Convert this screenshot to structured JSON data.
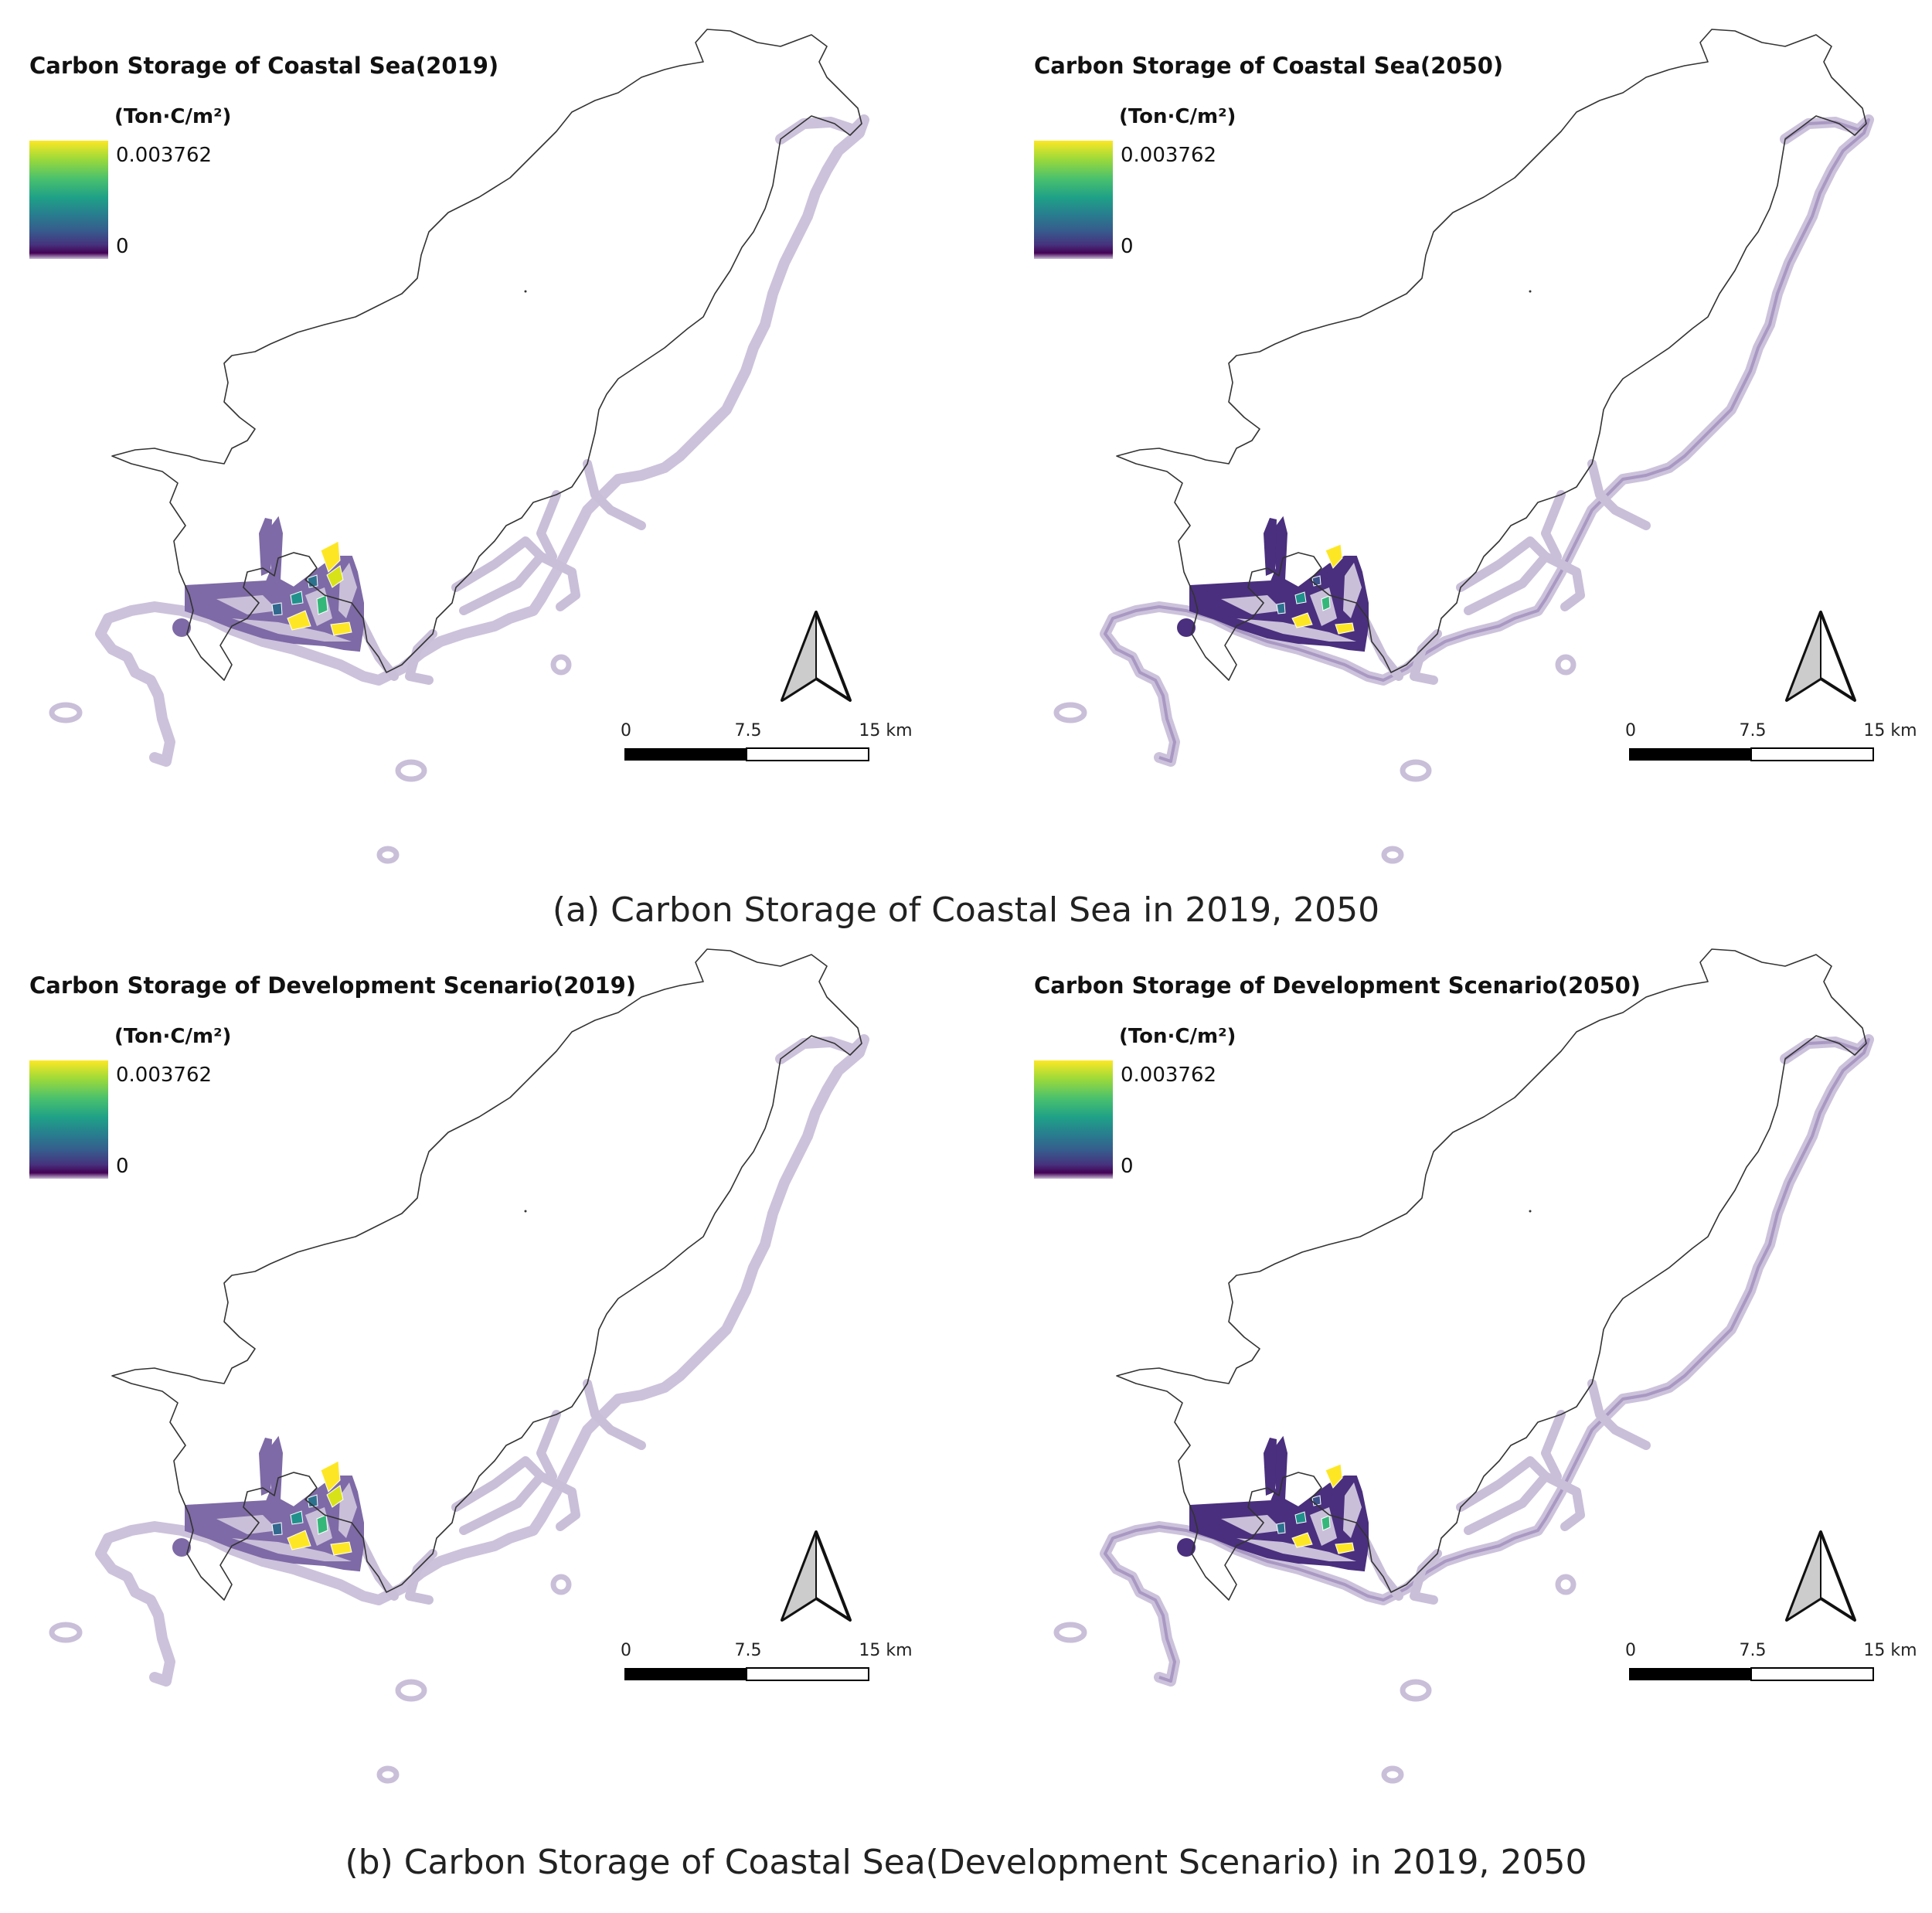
{
  "panels": [
    {
      "title": "Carbon Storage of Coastal Sea(2019)",
      "unit": "(Ton·C/m²)",
      "legend_max": "0.003762",
      "legend_min": "0",
      "scenario": "2019"
    },
    {
      "title": "Carbon Storage of Coastal Sea(2050)",
      "unit": "(Ton·C/m²)",
      "legend_max": "0.003762",
      "legend_min": "0",
      "scenario": "2050"
    },
    {
      "title": "Carbon Storage of Development Scenario(2019)",
      "unit": "(Ton·C/m²)",
      "legend_max": "0.003762",
      "legend_min": "0",
      "scenario": "2019"
    },
    {
      "title": "Carbon Storage of Development Scenario(2050)",
      "unit": "(Ton·C/m²)",
      "legend_max": "0.003762",
      "legend_min": "0",
      "scenario": "2050"
    }
  ],
  "scalebar": {
    "labels": [
      "0",
      "7.5",
      "15 km"
    ]
  },
  "captions": {
    "a": "(a) Carbon Storage of Coastal Sea in 2019, 2050",
    "b": "(b) Carbon Storage of Coastal Sea(Development Scenario) in 2019, 2050"
  },
  "colors": {
    "viridis_max": "#fde725",
    "viridis_mid": "#21918c",
    "viridis_min": "#440154",
    "coastal_zero": "#c9bfd9",
    "harbor_2019": "#7e6aa6",
    "harbor_2050": "#4a2f7e",
    "outline": "#333333"
  }
}
